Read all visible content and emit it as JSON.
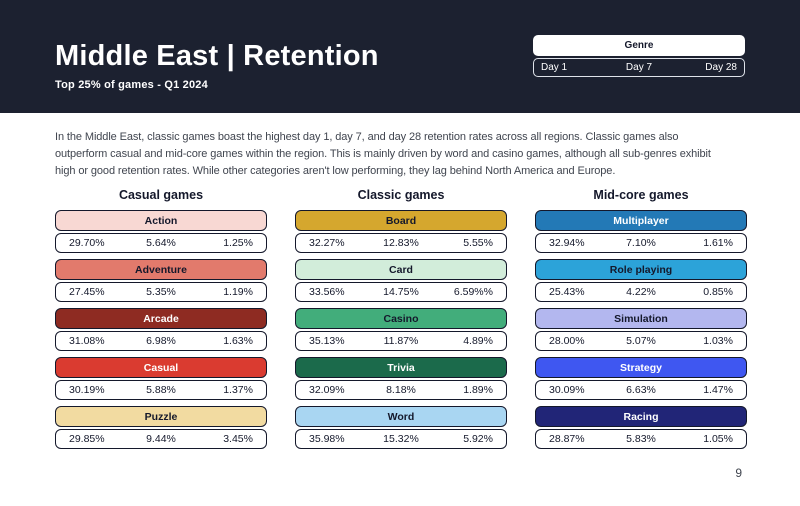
{
  "header": {
    "title": "Middle East |  Retention",
    "subtitle": "Top 25% of games - Q1 2024",
    "bg_color": "#1c2130"
  },
  "legend": {
    "genre_label": "Genre",
    "day1": "Day 1",
    "day7": "Day 7",
    "day28": "Day 28"
  },
  "summary_lines": {
    "line1": "In the Middle East, classic games boast the highest day 1, day 7, and day 28 retention rates across all regions. Classic games also",
    "line2": "outperform casual and mid-core games within the region. This is mainly driven by word and casino games, although all sub-genres exhibit",
    "line3": "high or good retention rates. While other categories aren't low performing, they lag behind North America and Europe."
  },
  "page_number": "9",
  "columns": [
    {
      "title": "Casual games",
      "cards": [
        {
          "genre": "Action",
          "day1": "29.70%",
          "day7": "5.64%",
          "day28": "1.25%",
          "header_bg": "#f8d8d3",
          "header_text": "#14182b"
        },
        {
          "genre": "Adventure",
          "day1": "27.45%",
          "day7": "5.35%",
          "day28": "1.19%",
          "header_bg": "#e27a6c",
          "header_text": "#14182b"
        },
        {
          "genre": "Arcade",
          "day1": "31.08%",
          "day7": "6.98%",
          "day28": "1.63%",
          "header_bg": "#8e2b22",
          "header_text": "#ffffff"
        },
        {
          "genre": "Casual",
          "day1": "30.19%",
          "day7": "5.88%",
          "day28": "1.37%",
          "header_bg": "#da3b30",
          "header_text": "#ffffff"
        },
        {
          "genre": "Puzzle",
          "day1": "29.85%",
          "day7": "9.44%",
          "day28": "3.45%",
          "header_bg": "#f2dba1",
          "header_text": "#14182b"
        }
      ]
    },
    {
      "title": "Classic games",
      "cards": [
        {
          "genre": "Board",
          "day1": "32.27%",
          "day7": "12.83%",
          "day28": "5.55%",
          "header_bg": "#d5a72e",
          "header_text": "#14182b"
        },
        {
          "genre": "Card",
          "day1": "33.56%",
          "day7": "14.75%",
          "day28": "6.59%%",
          "header_bg": "#d2edda",
          "header_text": "#14182b"
        },
        {
          "genre": "Casino",
          "day1": "35.13%",
          "day7": "11.87%",
          "day28": "4.89%",
          "header_bg": "#42ad7b",
          "header_text": "#14182b"
        },
        {
          "genre": "Trivia",
          "day1": "32.09%",
          "day7": "8.18%",
          "day28": "1.89%",
          "header_bg": "#1b6a4b",
          "header_text": "#ffffff"
        },
        {
          "genre": "Word",
          "day1": "35.98%",
          "day7": "15.32%",
          "day28": "5.92%",
          "header_bg": "#a9d6f2",
          "header_text": "#14182b"
        }
      ]
    },
    {
      "title": "Mid-core games",
      "cards": [
        {
          "genre": "Multiplayer",
          "day1": "32.94%",
          "day7": "7.10%",
          "day28": "1.61%",
          "header_bg": "#2379b6",
          "header_text": "#ffffff"
        },
        {
          "genre": "Role playing",
          "day1": "25.43%",
          "day7": "4.22%",
          "day28": "0.85%",
          "header_bg": "#2ca3d9",
          "header_text": "#14182b"
        },
        {
          "genre": "Simulation",
          "day1": "28.00%",
          "day7": "5.07%",
          "day28": "1.03%",
          "header_bg": "#b3b7ef",
          "header_text": "#14182b"
        },
        {
          "genre": "Strategy",
          "day1": "30.09%",
          "day7": "6.63%",
          "day28": "1.47%",
          "header_bg": "#3f57f1",
          "header_text": "#ffffff"
        },
        {
          "genre": "Racing",
          "day1": "28.87%",
          "day7": "5.83%",
          "day28": "1.05%",
          "header_bg": "#212577",
          "header_text": "#ffffff"
        }
      ]
    }
  ]
}
